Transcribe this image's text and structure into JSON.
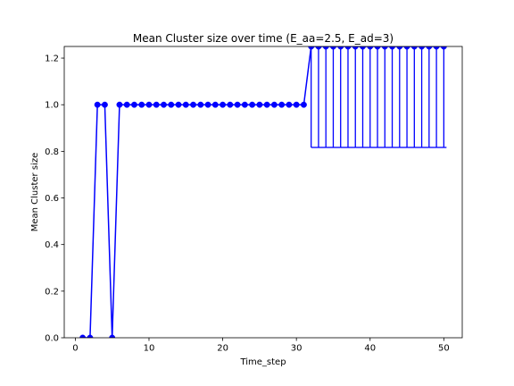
{
  "chart_data": {
    "type": "line",
    "title": "Mean Cluster size over time (E_aa=2.5, E_ad=3)",
    "xlabel": "Time_step",
    "ylabel": "Mean Cluster size",
    "xlim": [
      -1.5,
      52.5
    ],
    "ylim": [
      0.0,
      1.25
    ],
    "xticks": [
      0,
      10,
      20,
      30,
      40,
      50
    ],
    "yticks": [
      0.0,
      0.2,
      0.4,
      0.6,
      0.8,
      1.0,
      1.2
    ],
    "xtick_labels": [
      "0",
      "10",
      "20",
      "30",
      "40",
      "50"
    ],
    "ytick_labels": [
      "0.0",
      "0.2",
      "0.4",
      "0.6",
      "0.8",
      "1.0",
      "1.2"
    ],
    "grid": false,
    "series": [
      {
        "color": "#0000ff",
        "marker": "circle",
        "x": [
          1,
          2,
          3,
          4,
          5,
          6,
          7,
          8,
          9,
          10,
          11,
          12,
          13,
          14,
          15,
          16,
          17,
          18,
          19,
          20,
          21,
          22,
          23,
          24,
          25,
          26,
          27,
          28,
          29,
          30,
          31,
          32,
          33,
          34,
          35,
          36,
          37,
          38,
          39,
          40,
          41,
          42,
          43,
          44,
          45,
          46,
          47,
          48,
          49,
          50
        ],
        "values": [
          0.0,
          0.0,
          1.0,
          1.0,
          0.0,
          1.0,
          1.0,
          1.0,
          1.0,
          1.0,
          1.0,
          1.0,
          1.0,
          1.0,
          1.0,
          1.0,
          1.0,
          1.0,
          1.0,
          1.0,
          1.0,
          1.0,
          1.0,
          1.0,
          1.0,
          1.0,
          1.0,
          1.0,
          1.0,
          1.0,
          1.0,
          1.25,
          1.25,
          1.25,
          1.25,
          1.25,
          1.25,
          1.25,
          1.25,
          1.25,
          1.25,
          1.25,
          1.25,
          1.25,
          1.25,
          1.25,
          1.25,
          1.25,
          1.25,
          1.25
        ]
      }
    ],
    "errorbars": {
      "color": "#0000ff",
      "x": [
        32,
        33,
        34,
        35,
        36,
        37,
        38,
        39,
        40,
        41,
        42,
        43,
        44,
        45,
        46,
        47,
        48,
        49,
        50
      ],
      "lower": [
        0.8167,
        0.8167,
        0.8167,
        0.8167,
        0.8167,
        0.8167,
        0.8167,
        0.8167,
        0.8167,
        0.8167,
        0.8167,
        0.8167,
        0.8167,
        0.8167,
        0.8167,
        0.8167,
        0.8167,
        0.8167,
        0.8167
      ],
      "upper": [
        1.6833,
        1.6833,
        1.6833,
        1.6833,
        1.6833,
        1.6833,
        1.6833,
        1.6833,
        1.6833,
        1.6833,
        1.6833,
        1.6833,
        1.6833,
        1.6833,
        1.6833,
        1.6833,
        1.6833,
        1.6833,
        1.6833
      ]
    }
  }
}
